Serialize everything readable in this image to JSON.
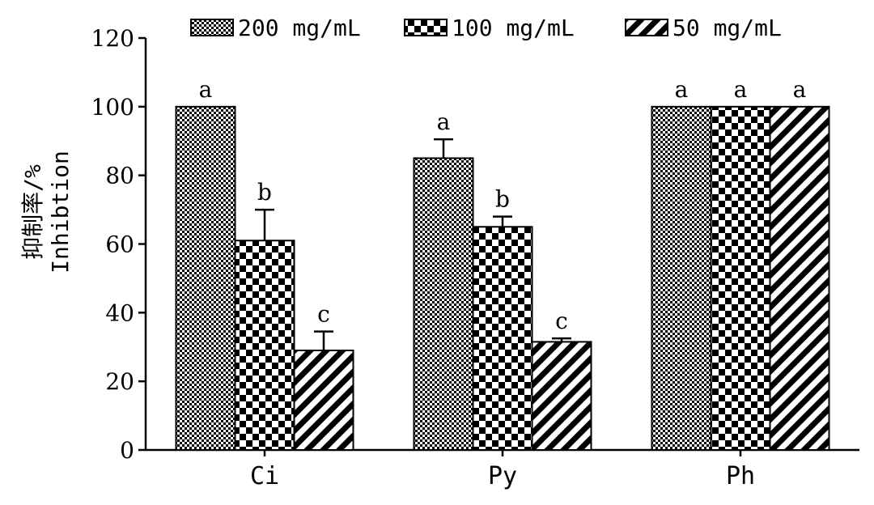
{
  "chart_data": {
    "type": "bar",
    "categories": [
      "Ci",
      "Py",
      "Ph"
    ],
    "series": [
      {
        "name": "200 mg/mL",
        "pattern": "fine-check",
        "values": [
          100,
          85,
          100
        ],
        "errors": [
          0,
          5.5,
          0
        ],
        "letters": [
          "a",
          "a",
          "a"
        ]
      },
      {
        "name": "100 mg/mL",
        "pattern": "checker",
        "values": [
          61,
          65,
          100
        ],
        "errors": [
          9,
          3,
          0
        ],
        "letters": [
          "b",
          "b",
          "a"
        ]
      },
      {
        "name": "50 mg/mL",
        "pattern": "diagonal-stripes",
        "values": [
          29,
          31.5,
          100
        ],
        "errors": [
          5.5,
          1,
          0
        ],
        "letters": [
          "c",
          "c",
          "a"
        ]
      }
    ],
    "ylabel_lines": [
      "抑制率/%",
      "Inhibtion"
    ],
    "xlabel": "",
    "ylim": [
      0,
      120
    ],
    "yticks": [
      0,
      20,
      40,
      60,
      80,
      100,
      120
    ],
    "grid": false,
    "legend_position": "top"
  }
}
